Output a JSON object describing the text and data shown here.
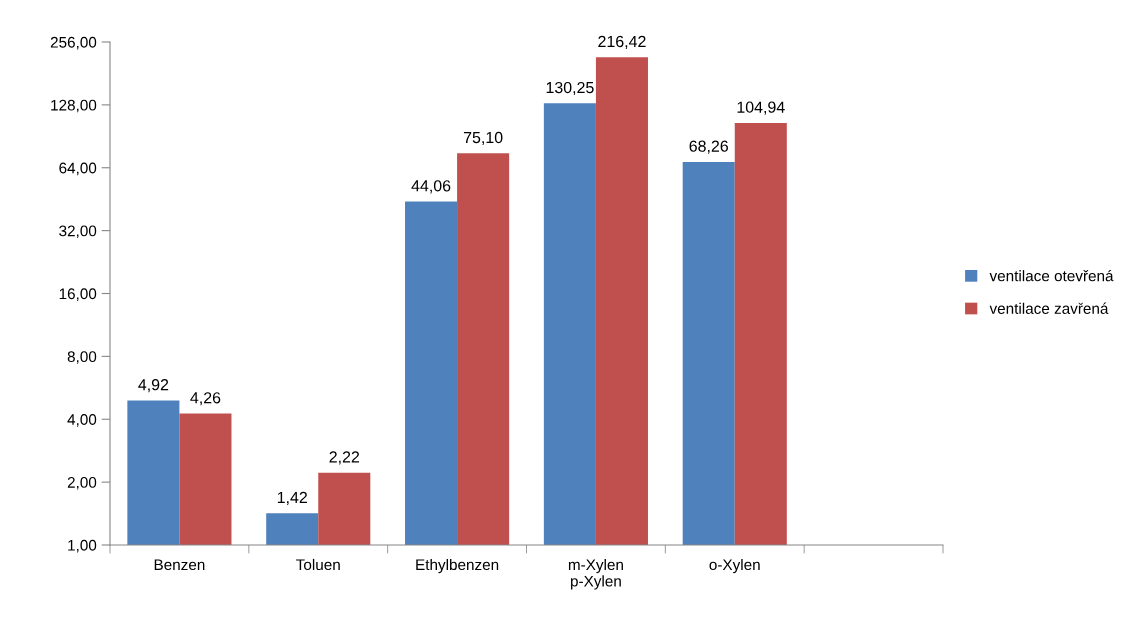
{
  "chart_data": {
    "type": "bar",
    "categories": [
      "Benzen",
      "Toluen",
      "Ethylbenzen",
      "m-Xylen\np-Xylen",
      "o-Xylen",
      null
    ],
    "series": [
      {
        "name": "ventilace otevřená",
        "color": "#4f81bd",
        "values": [
          4.92,
          1.42,
          44.06,
          130.25,
          68.26,
          null
        ],
        "value_labels": [
          "4,92",
          "1,42",
          "44,06",
          "130,25",
          "68,26",
          null
        ]
      },
      {
        "name": "ventilace zavřená",
        "color": "#c0504d",
        "values": [
          4.26,
          2.22,
          75.1,
          216.42,
          104.94,
          null
        ],
        "value_labels": [
          "4,26",
          "2,22",
          "75,10",
          "216,42",
          "104,94",
          null
        ]
      }
    ],
    "log": "y",
    "ylim": [
      1,
      256
    ],
    "yticks": [
      {
        "value": 1,
        "label": "1,00"
      },
      {
        "value": 2,
        "label": "2,00"
      },
      {
        "value": 4,
        "label": "4,00"
      },
      {
        "value": 8,
        "label": "8,00"
      },
      {
        "value": 16,
        "label": "16,00"
      },
      {
        "value": 32,
        "label": "32,00"
      },
      {
        "value": 64,
        "label": "64,00"
      },
      {
        "value": 128,
        "label": "128,00"
      },
      {
        "value": 256,
        "label": "256,00"
      }
    ],
    "grid": false,
    "legend": "right"
  }
}
